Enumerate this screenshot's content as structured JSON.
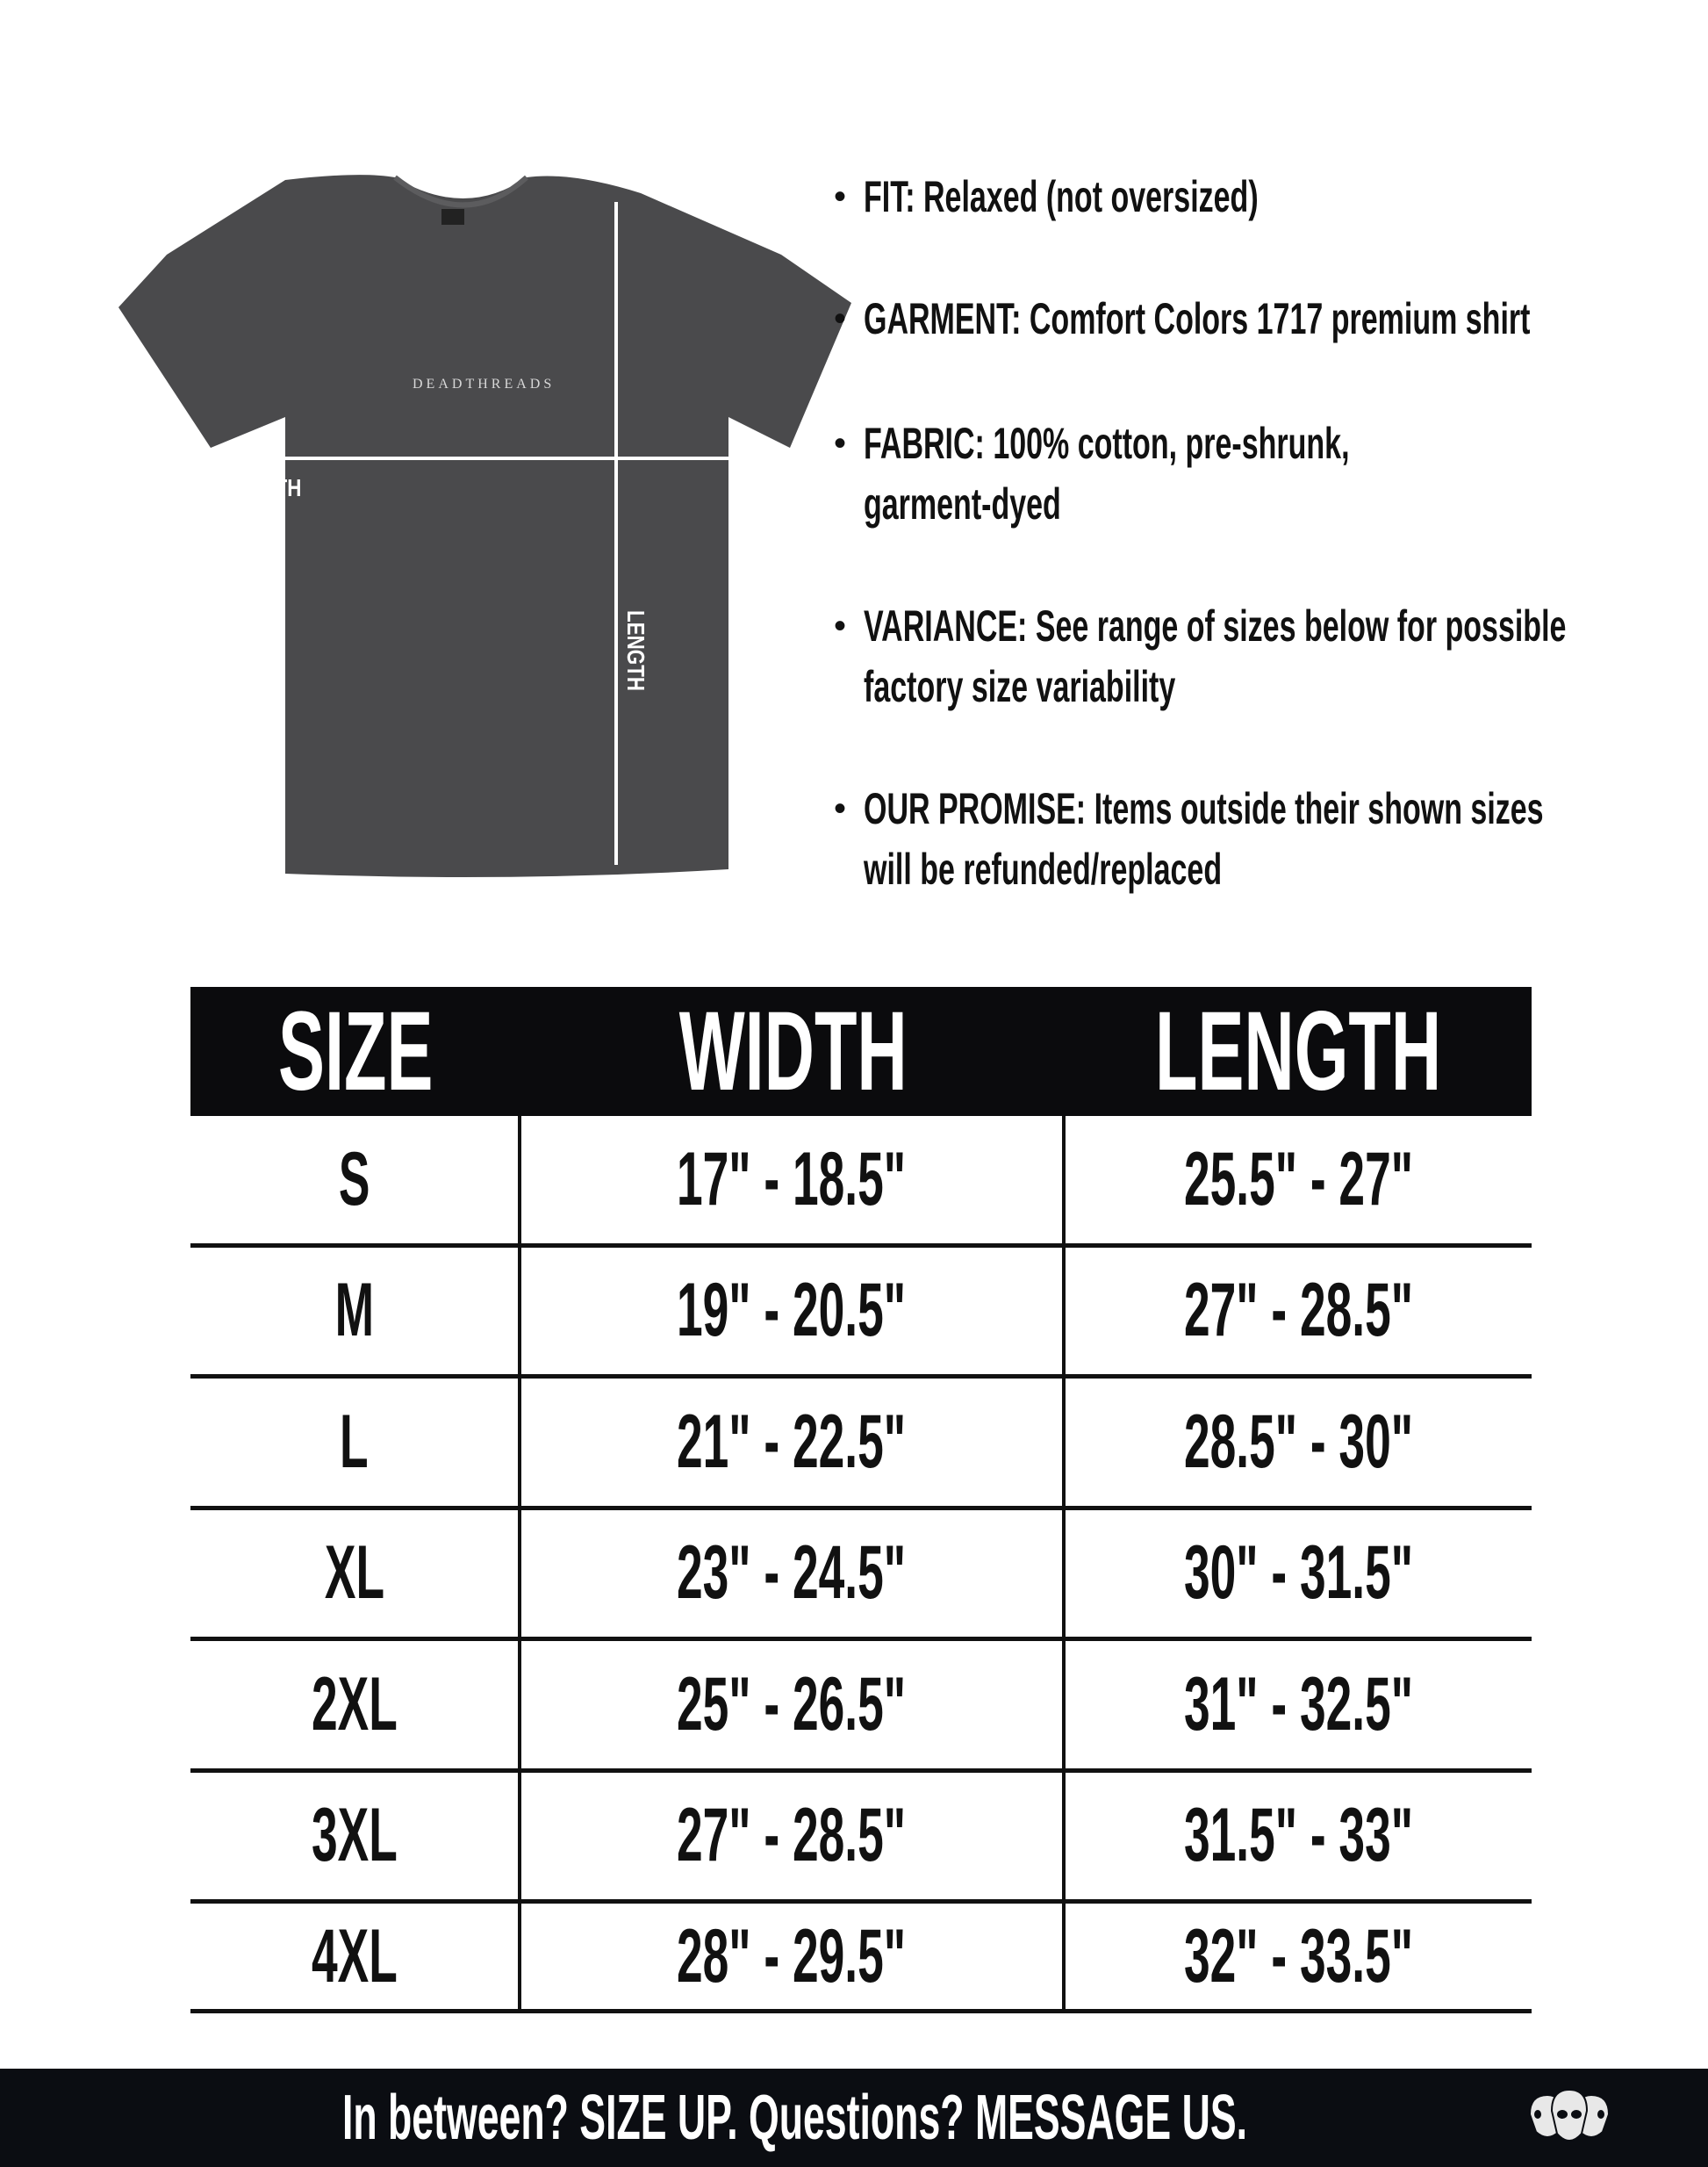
{
  "shirt": {
    "brand_print": "DEADTHREADS",
    "width_label": "WIDTH",
    "length_label": "LENGTH",
    "color": "#4a4a4c"
  },
  "bullets": [
    {
      "lines": [
        "FIT: Relaxed (not oversized)"
      ]
    },
    {
      "lines": [
        "GARMENT: Comfort Colors 1717 premium shirt"
      ]
    },
    {
      "lines": [
        "FABRIC: 100% cotton, pre-shrunk,",
        "garment-dyed"
      ]
    },
    {
      "lines": [
        "VARIANCE: See range of sizes below for possible",
        "factory size variability"
      ]
    },
    {
      "lines": [
        "OUR PROMISE: Items outside their shown sizes",
        "will be refunded/replaced"
      ]
    }
  ],
  "bullet_char": "•",
  "table": {
    "headers": [
      "SIZE",
      "WIDTH",
      "LENGTH"
    ],
    "rows": [
      [
        "S",
        "17\" - 18.5\"",
        "25.5\" - 27\""
      ],
      [
        "M",
        "19\" - 20.5\"",
        "27\" - 28.5\""
      ],
      [
        "L",
        "21\" - 22.5\"",
        "28.5\" - 30\""
      ],
      [
        "XL",
        "23\" - 24.5\"",
        "30\" - 31.5\""
      ],
      [
        "2XL",
        "25\" - 26.5\"",
        "31\" - 32.5\""
      ],
      [
        "3XL",
        "27\" - 28.5\"",
        "31.5\" - 33\""
      ],
      [
        "4XL",
        "28\" - 29.5\"",
        "32\" - 33.5\""
      ]
    ]
  },
  "footer": {
    "message": "In between? SIZE UP. Questions? MESSAGE US.",
    "logo_icon": "three-skulls-icon"
  },
  "colors": {
    "header_bg": "#0b0b0d",
    "footer_bg": "#0b0d12"
  }
}
